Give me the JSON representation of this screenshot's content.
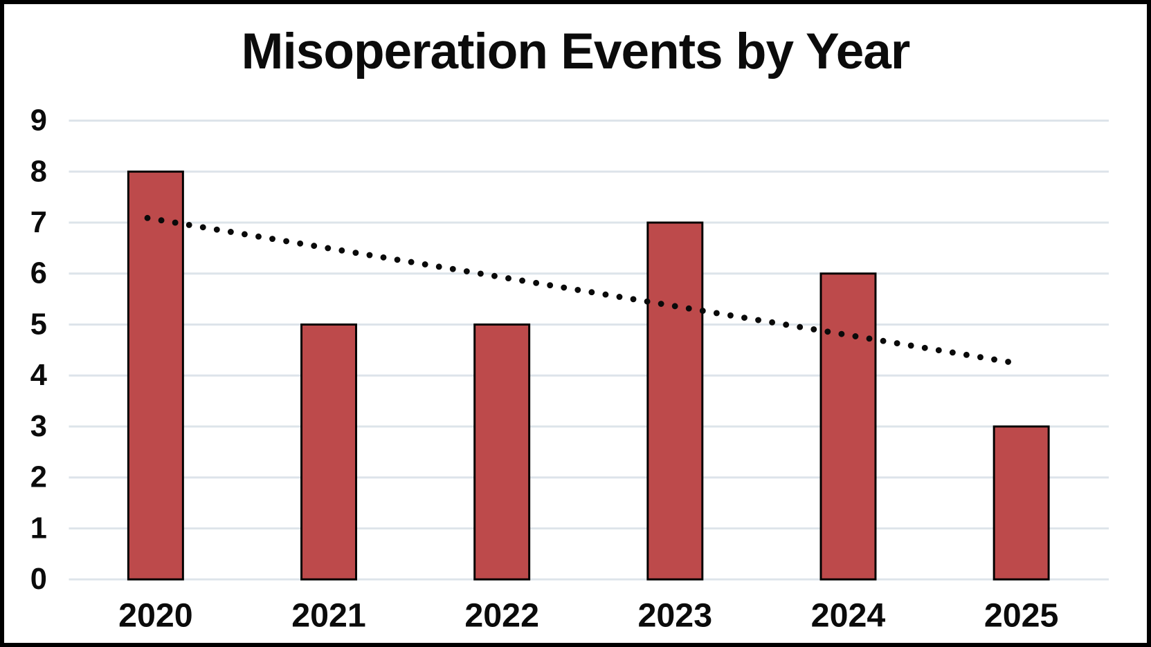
{
  "chart_data": {
    "type": "bar",
    "title": "Misoperation Events by Year",
    "categories": [
      "2020",
      "2021",
      "2022",
      "2023",
      "2024",
      "2025"
    ],
    "values": [
      8,
      5,
      5,
      7,
      6,
      3
    ],
    "y_ticks": [
      0,
      1,
      2,
      3,
      4,
      5,
      6,
      7,
      8,
      9
    ],
    "ylim": [
      0,
      9
    ],
    "xlabel": "",
    "ylabel": "",
    "grid": true,
    "legend": "none",
    "trendline": {
      "type": "linear",
      "style": "dotted",
      "start_value": 7.09,
      "end_value": 4.25
    },
    "colors": {
      "bar_fill": "#BD4A4B",
      "bar_stroke": "#000000",
      "gridline": "#DDE4EA",
      "trendline": "#0A0A0A",
      "text": "#0B0B0B",
      "background": "#FFFFFF",
      "border": "#000000"
    }
  }
}
